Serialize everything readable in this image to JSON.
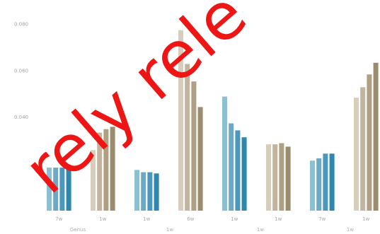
{
  "chart_data": {
    "type": "bar",
    "title": "",
    "xlabel": "",
    "ylabel": "",
    "ylim": [
      0,
      0.085
    ],
    "yticks": [
      {
        "value": 0.04,
        "label": "0.040"
      },
      {
        "value": 0.06,
        "label": "0.060"
      },
      {
        "value": 0.08,
        "label": "0.080"
      }
    ],
    "grid": false,
    "categories": [
      "7w",
      "1w",
      "1w",
      "6w",
      "1w",
      "1w",
      "7w",
      "1w"
    ],
    "groups": [
      "Genus",
      "1w",
      "1w",
      "1w"
    ],
    "series_colors": {
      "blue": [
        "#8dbfd3",
        "#6ba9c4",
        "#4d98ba",
        "#2f87ae"
      ],
      "tan": [
        "#d6cdbd",
        "#c3b49d",
        "#b0a083",
        "#9c8b6d"
      ]
    },
    "bars": [
      {
        "palette": "blue",
        "values": [
          0.0185,
          0.0185,
          0.0185,
          0.018
        ]
      },
      {
        "palette": "tan",
        "values": [
          0.026,
          0.0335,
          0.035,
          0.036
        ]
      },
      {
        "palette": "blue",
        "values": [
          0.0175,
          0.0165,
          0.0165,
          0.016
        ]
      },
      {
        "palette": "tan",
        "values": [
          0.0775,
          0.063,
          0.0555,
          0.0445
        ]
      },
      {
        "palette": "blue",
        "values": [
          0.049,
          0.0375,
          0.0345,
          0.0315
        ]
      },
      {
        "palette": "tan",
        "values": [
          0.0285,
          0.0285,
          0.029,
          0.0275
        ]
      },
      {
        "palette": "blue",
        "values": [
          0.0215,
          0.0225,
          0.0245,
          0.0245
        ]
      },
      {
        "palette": "tan",
        "values": [
          0.0485,
          0.053,
          0.0585,
          0.0635
        ]
      }
    ]
  },
  "watermark": {
    "text": "rely rele",
    "color": "#ee1515"
  }
}
